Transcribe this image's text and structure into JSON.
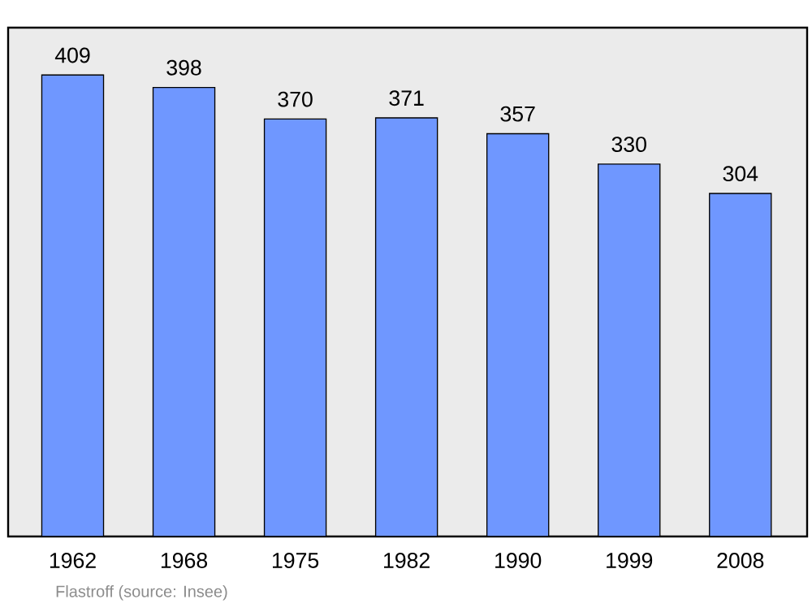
{
  "chart_data": {
    "type": "bar",
    "categories": [
      "1962",
      "1968",
      "1975",
      "1982",
      "1990",
      "1999",
      "2008"
    ],
    "values": [
      409,
      398,
      370,
      371,
      357,
      330,
      304
    ],
    "color": "#6f97ff",
    "ylim": [
      0,
      451
    ],
    "data_labels": true,
    "tick_labels": "x",
    "annotations": [
      "Flastroff  (source: Insee)"
    ]
  }
}
